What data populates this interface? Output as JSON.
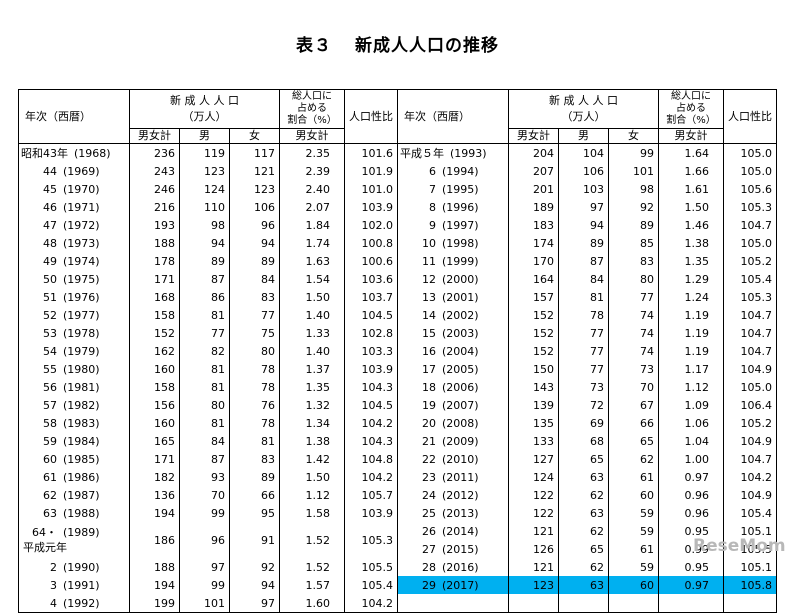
{
  "title": {
    "label": "表３",
    "text": "新成人人口の推移"
  },
  "headers": {
    "year": "年次（西暦）",
    "newadults": "新 成 人 人 口",
    "unit": "（万人）",
    "share": "総人口に占める割合（%）",
    "share_lines": [
      "総人口に",
      "占める",
      "割合（%）"
    ],
    "sexratio": "人口性比",
    "total": "男女計",
    "male": "男",
    "female": "女"
  },
  "left_rows": [
    {
      "jp": "昭和43年",
      "w": "(1968)",
      "t": "236",
      "m": "119",
      "f": "117",
      "r": "2.35",
      "s": "101.6",
      "era": true
    },
    {
      "jp": "44",
      "w": "(1969)",
      "t": "243",
      "m": "123",
      "f": "121",
      "r": "2.39",
      "s": "101.9"
    },
    {
      "jp": "45",
      "w": "(1970)",
      "t": "246",
      "m": "124",
      "f": "123",
      "r": "2.40",
      "s": "101.0"
    },
    {
      "jp": "46",
      "w": "(1971)",
      "t": "216",
      "m": "110",
      "f": "106",
      "r": "2.07",
      "s": "103.9"
    },
    {
      "jp": "47",
      "w": "(1972)",
      "t": "193",
      "m": "98",
      "f": "96",
      "r": "1.84",
      "s": "102.0"
    },
    {
      "jp": "48",
      "w": "(1973)",
      "t": "188",
      "m": "94",
      "f": "94",
      "r": "1.74",
      "s": "100.8"
    },
    {
      "jp": "49",
      "w": "(1974)",
      "t": "178",
      "m": "89",
      "f": "89",
      "r": "1.63",
      "s": "100.6"
    },
    {
      "jp": "50",
      "w": "(1975)",
      "t": "171",
      "m": "87",
      "f": "84",
      "r": "1.54",
      "s": "103.6"
    },
    {
      "jp": "51",
      "w": "(1976)",
      "t": "168",
      "m": "86",
      "f": "83",
      "r": "1.50",
      "s": "103.7"
    },
    {
      "jp": "52",
      "w": "(1977)",
      "t": "158",
      "m": "81",
      "f": "77",
      "r": "1.40",
      "s": "104.5"
    },
    {
      "jp": "53",
      "w": "(1978)",
      "t": "152",
      "m": "77",
      "f": "75",
      "r": "1.33",
      "s": "102.8"
    },
    {
      "jp": "54",
      "w": "(1979)",
      "t": "162",
      "m": "82",
      "f": "80",
      "r": "1.40",
      "s": "103.3"
    },
    {
      "jp": "55",
      "w": "(1980)",
      "t": "160",
      "m": "81",
      "f": "78",
      "r": "1.37",
      "s": "103.9"
    },
    {
      "jp": "56",
      "w": "(1981)",
      "t": "158",
      "m": "81",
      "f": "78",
      "r": "1.35",
      "s": "104.3"
    },
    {
      "jp": "57",
      "w": "(1982)",
      "t": "156",
      "m": "80",
      "f": "76",
      "r": "1.32",
      "s": "104.5"
    },
    {
      "jp": "58",
      "w": "(1983)",
      "t": "160",
      "m": "81",
      "f": "78",
      "r": "1.34",
      "s": "104.2"
    },
    {
      "jp": "59",
      "w": "(1984)",
      "t": "165",
      "m": "84",
      "f": "81",
      "r": "1.38",
      "s": "104.3"
    },
    {
      "jp": "60",
      "w": "(1985)",
      "t": "171",
      "m": "87",
      "f": "83",
      "r": "1.42",
      "s": "104.8"
    },
    {
      "jp": "61",
      "w": "(1986)",
      "t": "182",
      "m": "93",
      "f": "89",
      "r": "1.50",
      "s": "104.2"
    },
    {
      "jp": "62",
      "w": "(1987)",
      "t": "136",
      "m": "70",
      "f": "66",
      "r": "1.12",
      "s": "105.7"
    },
    {
      "jp": "63",
      "w": "(1988)",
      "t": "194",
      "m": "99",
      "f": "95",
      "r": "1.58",
      "s": "103.9"
    },
    {
      "jp": "64・",
      "w": "(1989)",
      "jp2": "平成元年",
      "t": "186",
      "m": "96",
      "f": "91",
      "r": "1.52",
      "s": "105.3",
      "tall": true
    },
    {
      "jp": "2",
      "w": "(1990)",
      "t": "188",
      "m": "97",
      "f": "92",
      "r": "1.52",
      "s": "105.5"
    },
    {
      "jp": "3",
      "w": "(1991)",
      "t": "194",
      "m": "99",
      "f": "94",
      "r": "1.57",
      "s": "105.4"
    },
    {
      "jp": "4",
      "w": "(1992)",
      "t": "199",
      "m": "101",
      "f": "97",
      "r": "1.60",
      "s": "104.2"
    }
  ],
  "right_rows": [
    {
      "jp": "平成５年",
      "w": "(1993)",
      "t": "204",
      "m": "104",
      "f": "99",
      "r": "1.64",
      "s": "105.0",
      "era": true
    },
    {
      "jp": "6",
      "w": "(1994)",
      "t": "207",
      "m": "106",
      "f": "101",
      "r": "1.66",
      "s": "105.0"
    },
    {
      "jp": "7",
      "w": "(1995)",
      "t": "201",
      "m": "103",
      "f": "98",
      "r": "1.61",
      "s": "105.6"
    },
    {
      "jp": "8",
      "w": "(1996)",
      "t": "189",
      "m": "97",
      "f": "92",
      "r": "1.50",
      "s": "105.3"
    },
    {
      "jp": "9",
      "w": "(1997)",
      "t": "183",
      "m": "94",
      "f": "89",
      "r": "1.46",
      "s": "104.7"
    },
    {
      "jp": "10",
      "w": "(1998)",
      "t": "174",
      "m": "89",
      "f": "85",
      "r": "1.38",
      "s": "105.0"
    },
    {
      "jp": "11",
      "w": "(1999)",
      "t": "170",
      "m": "87",
      "f": "83",
      "r": "1.35",
      "s": "105.2"
    },
    {
      "jp": "12",
      "w": "(2000)",
      "t": "164",
      "m": "84",
      "f": "80",
      "r": "1.29",
      "s": "105.4"
    },
    {
      "jp": "13",
      "w": "(2001)",
      "t": "157",
      "m": "81",
      "f": "77",
      "r": "1.24",
      "s": "105.3"
    },
    {
      "jp": "14",
      "w": "(2002)",
      "t": "152",
      "m": "78",
      "f": "74",
      "r": "1.19",
      "s": "104.7"
    },
    {
      "jp": "15",
      "w": "(2003)",
      "t": "152",
      "m": "77",
      "f": "74",
      "r": "1.19",
      "s": "104.7"
    },
    {
      "jp": "16",
      "w": "(2004)",
      "t": "152",
      "m": "77",
      "f": "74",
      "r": "1.19",
      "s": "104.7"
    },
    {
      "jp": "17",
      "w": "(2005)",
      "t": "150",
      "m": "77",
      "f": "73",
      "r": "1.17",
      "s": "104.9"
    },
    {
      "jp": "18",
      "w": "(2006)",
      "t": "143",
      "m": "73",
      "f": "70",
      "r": "1.12",
      "s": "105.0"
    },
    {
      "jp": "19",
      "w": "(2007)",
      "t": "139",
      "m": "72",
      "f": "67",
      "r": "1.09",
      "s": "106.4"
    },
    {
      "jp": "20",
      "w": "(2008)",
      "t": "135",
      "m": "69",
      "f": "66",
      "r": "1.06",
      "s": "105.2"
    },
    {
      "jp": "21",
      "w": "(2009)",
      "t": "133",
      "m": "68",
      "f": "65",
      "r": "1.04",
      "s": "104.9"
    },
    {
      "jp": "22",
      "w": "(2010)",
      "t": "127",
      "m": "65",
      "f": "62",
      "r": "1.00",
      "s": "104.7"
    },
    {
      "jp": "23",
      "w": "(2011)",
      "t": "124",
      "m": "63",
      "f": "61",
      "r": "0.97",
      "s": "104.2"
    },
    {
      "jp": "24",
      "w": "(2012)",
      "t": "122",
      "m": "62",
      "f": "60",
      "r": "0.96",
      "s": "104.9"
    },
    {
      "jp": "25",
      "w": "(2013)",
      "t": "122",
      "m": "63",
      "f": "59",
      "r": "0.96",
      "s": "105.4"
    },
    {
      "jp": "26",
      "w": "(2014)",
      "t": "121",
      "m": "62",
      "f": "59",
      "r": "0.95",
      "s": "105.1"
    },
    {
      "jp": "27",
      "w": "(2015)",
      "t": "126",
      "m": "65",
      "f": "61",
      "r": "0.99",
      "s": "105.5"
    },
    {
      "jp": "28",
      "w": "(2016)",
      "t": "121",
      "m": "62",
      "f": "59",
      "r": "0.95",
      "s": "105.1"
    },
    {
      "jp": "29",
      "w": "(2017)",
      "t": "123",
      "m": "63",
      "f": "60",
      "r": "0.97",
      "s": "105.8",
      "highlight": true
    },
    {
      "jp": "",
      "w": "",
      "t": "",
      "m": "",
      "f": "",
      "r": "",
      "s": ""
    }
  ],
  "highlight_color": "#00b0f0",
  "watermark": "ReseMom"
}
